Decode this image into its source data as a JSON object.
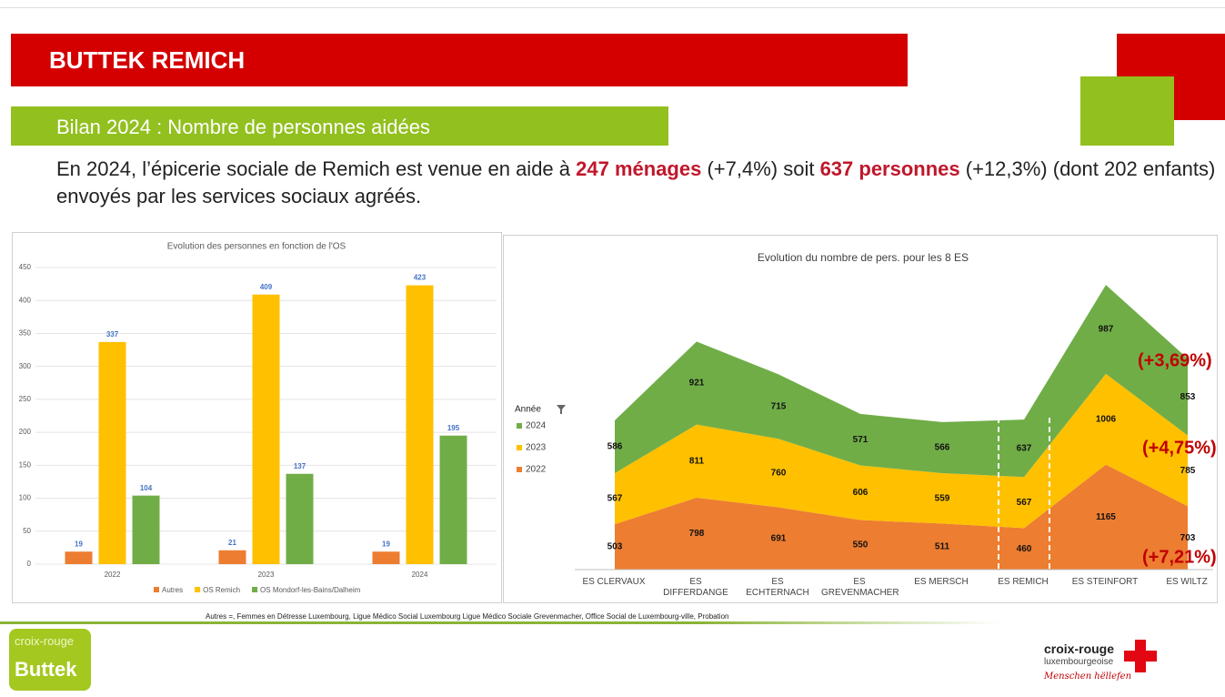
{
  "header": {
    "title": "BUTTEK REMICH",
    "subtitle": "Bilan 2024 : Nombre de personnes aidées"
  },
  "intro": [
    "En 2024, l’épicerie sociale de Remich est venue en aide à ",
    "247 ménages",
    " (+7,4%) soit ",
    "637 personnes",
    " (+12,3%) (dont 202 enfants) envoyés par les services sociaux agréés."
  ],
  "chart_data": [
    {
      "type": "bar",
      "title": "Evolution des personnes en fonction de l'OS",
      "categories": [
        "2022",
        "2023",
        "2024"
      ],
      "series": [
        {
          "name": "Autres",
          "color": "#ed7d31",
          "values": [
            19,
            21,
            19
          ]
        },
        {
          "name": "OS Remich",
          "color": "#ffc000",
          "values": [
            337,
            409,
            423
          ]
        },
        {
          "name": "OS Mondorf-les-Bains/Dalheim",
          "color": "#70ad47",
          "values": [
            104,
            137,
            195
          ]
        }
      ],
      "ylim": [
        0,
        450
      ],
      "yticks": [
        0,
        50,
        100,
        150,
        200,
        250,
        300,
        350,
        400,
        450
      ],
      "grid": true,
      "legend": "bottom",
      "label_color": "#4472c4"
    },
    {
      "type": "area",
      "stacked": true,
      "title": "Evolution du nombre de pers. pour les 8 ES",
      "categories": [
        "ES CLERVAUX",
        "ES DIFFERDANGE",
        "ES ECHTERNACH",
        "ES GREVENMACHER",
        "ES MERSCH",
        "ES REMICH",
        "ES STEINFORT",
        "ES WILTZ"
      ],
      "series": [
        {
          "name": "2022",
          "color": "#ed7d31",
          "values": [
            503,
            798,
            691,
            550,
            511,
            460,
            1165,
            703
          ]
        },
        {
          "name": "2023",
          "color": "#ffc000",
          "values": [
            567,
            811,
            760,
            606,
            559,
            567,
            1006,
            785
          ]
        },
        {
          "name": "2024",
          "color": "#70ad47",
          "values": [
            586,
            921,
            715,
            571,
            566,
            637,
            987,
            853
          ]
        }
      ],
      "ylim": [
        0,
        3200
      ],
      "legend": "left",
      "legend_title": "Année",
      "annotations": [
        "(+3,69%)",
        "(+4,75%)",
        "(+7,21%)"
      ],
      "annotation_color": "#c00000"
    }
  ],
  "footnote": "Autres =, Femmes en Détresse Luxembourg, Ligue Médico Social Luxembourg Ligue Médico Sociale Grevenmacher, Office Social de Luxembourg-ville, Probation",
  "logos": {
    "left": [
      "croix-rouge",
      "Buttek"
    ],
    "right": [
      "croix-rouge",
      "luxembourgeoise",
      "Menschen hëllefen"
    ]
  }
}
